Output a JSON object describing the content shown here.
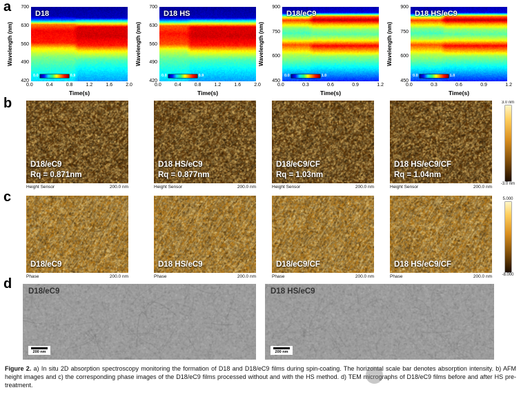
{
  "figure": {
    "caption_label": "Figure 2.",
    "caption_text": " a) In situ 2D absorption spectroscopy monitoring the formation of D18 and D18/eC9 films during spin-coating. The horizontal scale bar denotes absorption intensity. b) AFM height images and c) the corresponding phase images of the D18/eC9 films processed without and with the HS method. d) TEM micrographs of D18/eC9 films before and after HS pre-treatment."
  },
  "panel_a": {
    "label": "a",
    "ylabel": "Wavelength (nm)",
    "xlabel": "Time(s)",
    "plots": [
      {
        "title": "D18",
        "yticks": [
          "700",
          "630",
          "560",
          "490",
          "420"
        ],
        "xticks": [
          "0.0",
          "0.4",
          "0.8",
          "1.2",
          "1.6",
          "2.0"
        ],
        "cbar_min": "0.0",
        "cbar_max": "0.9",
        "heat": {
          "ymin": 420,
          "ymax": 700,
          "trans": 0.44,
          "before": [
            [
              700,
              0.03
            ],
            [
              665,
              0.05
            ],
            [
              650,
              0.25
            ],
            [
              635,
              0.75
            ],
            [
              610,
              0.88
            ],
            [
              565,
              0.85
            ],
            [
              545,
              0.65
            ],
            [
              510,
              0.5
            ],
            [
              470,
              0.42
            ],
            [
              420,
              0.34
            ]
          ],
          "after": [
            [
              700,
              0.03
            ],
            [
              660,
              0.06
            ],
            [
              645,
              0.45
            ],
            [
              625,
              0.9
            ],
            [
              590,
              0.92
            ],
            [
              555,
              0.85
            ],
            [
              535,
              0.65
            ],
            [
              500,
              0.45
            ],
            [
              460,
              0.36
            ],
            [
              420,
              0.28
            ]
          ]
        }
      },
      {
        "title": "D18 HS",
        "yticks": [
          "700",
          "630",
          "560",
          "490",
          "420"
        ],
        "xticks": [
          "0.0",
          "0.4",
          "0.8",
          "1.2",
          "1.6",
          "2.0"
        ],
        "cbar_min": "0.0",
        "cbar_max": "0.9",
        "heat": {
          "ymin": 420,
          "ymax": 700,
          "trans": 0.28,
          "before": [
            [
              700,
              0.03
            ],
            [
              662,
              0.05
            ],
            [
              648,
              0.3
            ],
            [
              630,
              0.78
            ],
            [
              600,
              0.86
            ],
            [
              560,
              0.8
            ],
            [
              540,
              0.6
            ],
            [
              505,
              0.47
            ],
            [
              465,
              0.4
            ],
            [
              420,
              0.33
            ]
          ],
          "after": [
            [
              700,
              0.03
            ],
            [
              660,
              0.06
            ],
            [
              645,
              0.45
            ],
            [
              625,
              0.9
            ],
            [
              590,
              0.92
            ],
            [
              555,
              0.85
            ],
            [
              535,
              0.65
            ],
            [
              500,
              0.45
            ],
            [
              460,
              0.36
            ],
            [
              420,
              0.28
            ]
          ]
        }
      },
      {
        "title": "D18/eC9",
        "yticks": [
          "900",
          "750",
          "600",
          "450"
        ],
        "xticks": [
          "0.0",
          "0.3",
          "0.6",
          "0.9",
          "1.2"
        ],
        "cbar_min": "0.0",
        "cbar_max": "1.0",
        "heat": {
          "ymin": 450,
          "ymax": 900,
          "trans": 0.27,
          "before": [
            [
              900,
              0.04
            ],
            [
              865,
              0.07
            ],
            [
              840,
              0.6
            ],
            [
              820,
              0.82
            ],
            [
              795,
              0.65
            ],
            [
              770,
              0.5
            ],
            [
              740,
              0.44
            ],
            [
              705,
              0.55
            ],
            [
              670,
              0.8
            ],
            [
              640,
              0.68
            ],
            [
              610,
              0.55
            ],
            [
              575,
              0.48
            ],
            [
              530,
              0.38
            ],
            [
              490,
              0.28
            ],
            [
              450,
              0.18
            ]
          ],
          "after": [
            [
              900,
              0.05
            ],
            [
              868,
              0.09
            ],
            [
              845,
              0.75
            ],
            [
              822,
              0.95
            ],
            [
              795,
              0.7
            ],
            [
              765,
              0.52
            ],
            [
              735,
              0.46
            ],
            [
              700,
              0.6
            ],
            [
              665,
              0.88
            ],
            [
              632,
              0.7
            ],
            [
              600,
              0.52
            ],
            [
              565,
              0.44
            ],
            [
              520,
              0.34
            ],
            [
              480,
              0.24
            ],
            [
              450,
              0.16
            ]
          ]
        }
      },
      {
        "title": "D18 HS/eC9",
        "yticks": [
          "900",
          "750",
          "600",
          "450"
        ],
        "xticks": [
          "0.0",
          "0.3",
          "0.6",
          "0.9",
          "1.2"
        ],
        "cbar_min": "0.0",
        "cbar_max": "1.0",
        "heat": {
          "ymin": 450,
          "ymax": 900,
          "trans": 0.31,
          "before": [
            [
              900,
              0.04
            ],
            [
              865,
              0.07
            ],
            [
              840,
              0.6
            ],
            [
              820,
              0.82
            ],
            [
              795,
              0.65
            ],
            [
              770,
              0.5
            ],
            [
              740,
              0.44
            ],
            [
              705,
              0.55
            ],
            [
              670,
              0.8
            ],
            [
              640,
              0.68
            ],
            [
              610,
              0.55
            ],
            [
              575,
              0.48
            ],
            [
              530,
              0.38
            ],
            [
              490,
              0.28
            ],
            [
              450,
              0.18
            ]
          ],
          "after": [
            [
              900,
              0.05
            ],
            [
              868,
              0.09
            ],
            [
              845,
              0.75
            ],
            [
              822,
              0.95
            ],
            [
              795,
              0.7
            ],
            [
              765,
              0.52
            ],
            [
              735,
              0.46
            ],
            [
              700,
              0.6
            ],
            [
              665,
              0.88
            ],
            [
              632,
              0.7
            ],
            [
              600,
              0.52
            ],
            [
              565,
              0.44
            ],
            [
              520,
              0.34
            ],
            [
              480,
              0.24
            ],
            [
              450,
              0.16
            ]
          ]
        }
      }
    ]
  },
  "panel_b": {
    "label": "b",
    "colorbar_top": "3.0 nm",
    "colorbar_bottom": "-3.0 nm",
    "images": [
      {
        "name": "D18/eC9",
        "rq": "Rq = 0.871nm",
        "sensor": "Height Sensor",
        "scale": "200.0 nm"
      },
      {
        "name": "D18 HS/eC9",
        "rq": "Rq = 0.877nm",
        "sensor": "Height Sensor",
        "scale": "200.0 nm"
      },
      {
        "name": "D18/eC9/CF",
        "rq": "Rq = 1.03nm",
        "sensor": "Height Sensor",
        "scale": "200.0 nm"
      },
      {
        "name": "D18 HS/eC9/CF",
        "rq": "Rq = 1.04nm",
        "sensor": "Height Sensor",
        "scale": "200.0 nm"
      }
    ]
  },
  "panel_c": {
    "label": "c",
    "colorbar_top": "5.000",
    "colorbar_bottom": "-8.000",
    "images": [
      {
        "name": "D18/eC9",
        "sensor": "Phase",
        "scale": "200.0 nm"
      },
      {
        "name": "D18 HS/eC9",
        "sensor": "Phase",
        "scale": "200.0 nm"
      },
      {
        "name": "D18/eC9/CF",
        "sensor": "Phase",
        "scale": "200.0 nm"
      },
      {
        "name": "D18 HS/eC9/CF",
        "sensor": "Phase",
        "scale": "200.0 nm"
      }
    ]
  },
  "panel_d": {
    "label": "d",
    "images": [
      {
        "name": "D18/eC9",
        "scalebar": "200 nm"
      },
      {
        "name": "D18 HS/eC9",
        "scalebar": "200 nm"
      }
    ]
  }
}
